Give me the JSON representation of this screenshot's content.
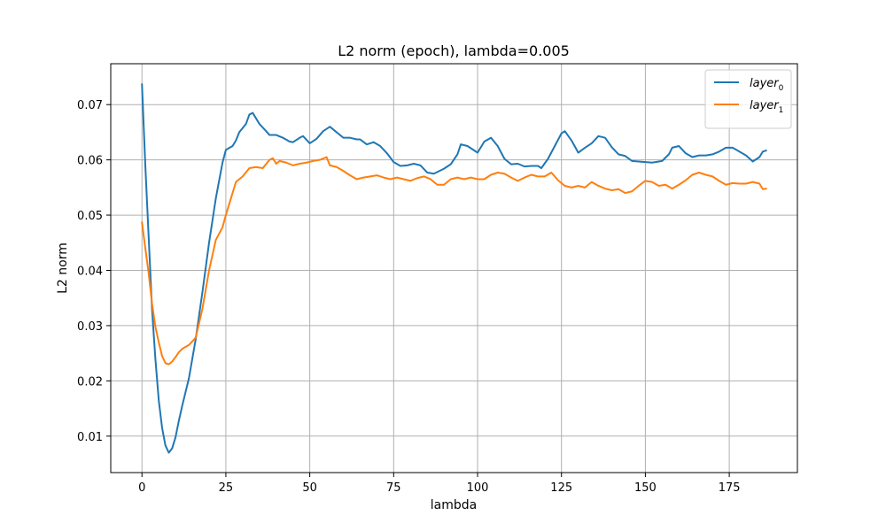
{
  "chart_data": {
    "type": "line",
    "title": "L2 norm (epoch), lambda=0.005",
    "xlabel": "lambda",
    "ylabel": "L2 norm",
    "xlim": [
      -9.3,
      195.3
    ],
    "ylim": [
      0.0034,
      0.0774
    ],
    "xticks": [
      0,
      25,
      50,
      75,
      100,
      125,
      150,
      175
    ],
    "yticks": [
      0.01,
      0.02,
      0.03,
      0.04,
      0.05,
      0.06,
      0.07
    ],
    "grid": true,
    "legend_position": "top-right",
    "series": [
      {
        "name": "layer",
        "name_sub": "0",
        "color": "#1f77b4",
        "points": [
          [
            0,
            0.0737
          ],
          [
            1,
            0.059
          ],
          [
            2,
            0.046
          ],
          [
            3,
            0.033
          ],
          [
            4,
            0.024
          ],
          [
            5,
            0.0165
          ],
          [
            6,
            0.0115
          ],
          [
            7,
            0.0083
          ],
          [
            8,
            0.007
          ],
          [
            9,
            0.0078
          ],
          [
            10,
            0.0098
          ],
          [
            11,
            0.0128
          ],
          [
            12,
            0.0155
          ],
          [
            14,
            0.0205
          ],
          [
            16,
            0.0275
          ],
          [
            18,
            0.036
          ],
          [
            20,
            0.045
          ],
          [
            22,
            0.053
          ],
          [
            24,
            0.0595
          ],
          [
            25,
            0.0618
          ],
          [
            27,
            0.0625
          ],
          [
            28,
            0.0635
          ],
          [
            29,
            0.065
          ],
          [
            31,
            0.0665
          ],
          [
            32,
            0.0682
          ],
          [
            33,
            0.0685
          ],
          [
            35,
            0.0665
          ],
          [
            37,
            0.0652
          ],
          [
            38,
            0.0645
          ],
          [
            40,
            0.0645
          ],
          [
            42,
            0.064
          ],
          [
            44,
            0.0633
          ],
          [
            45,
            0.0632
          ],
          [
            47,
            0.064
          ],
          [
            48,
            0.0643
          ],
          [
            50,
            0.063
          ],
          [
            52,
            0.0638
          ],
          [
            54,
            0.0652
          ],
          [
            56,
            0.066
          ],
          [
            58,
            0.065
          ],
          [
            60,
            0.064
          ],
          [
            62,
            0.064
          ],
          [
            64,
            0.0637
          ],
          [
            65,
            0.0637
          ],
          [
            67,
            0.0628
          ],
          [
            69,
            0.0632
          ],
          [
            71,
            0.0625
          ],
          [
            73,
            0.0612
          ],
          [
            75,
            0.0596
          ],
          [
            77,
            0.0589
          ],
          [
            79,
            0.059
          ],
          [
            81,
            0.0593
          ],
          [
            83,
            0.059
          ],
          [
            85,
            0.0577
          ],
          [
            87,
            0.0575
          ],
          [
            90,
            0.0584
          ],
          [
            92,
            0.0592
          ],
          [
            94,
            0.061
          ],
          [
            95,
            0.0628
          ],
          [
            97,
            0.0625
          ],
          [
            100,
            0.0613
          ],
          [
            102,
            0.0633
          ],
          [
            104,
            0.064
          ],
          [
            106,
            0.0625
          ],
          [
            108,
            0.0602
          ],
          [
            110,
            0.0592
          ],
          [
            112,
            0.0593
          ],
          [
            114,
            0.0588
          ],
          [
            116,
            0.0589
          ],
          [
            118,
            0.0589
          ],
          [
            119,
            0.0585
          ],
          [
            121,
            0.0602
          ],
          [
            123,
            0.0625
          ],
          [
            125,
            0.0648
          ],
          [
            126,
            0.0652
          ],
          [
            128,
            0.0635
          ],
          [
            130,
            0.0613
          ],
          [
            132,
            0.0622
          ],
          [
            134,
            0.063
          ],
          [
            136,
            0.0643
          ],
          [
            138,
            0.064
          ],
          [
            140,
            0.0623
          ],
          [
            142,
            0.061
          ],
          [
            144,
            0.0607
          ],
          [
            146,
            0.0598
          ],
          [
            148,
            0.0597
          ],
          [
            150,
            0.0596
          ],
          [
            152,
            0.0595
          ],
          [
            155,
            0.0598
          ],
          [
            157,
            0.061
          ],
          [
            158,
            0.0622
          ],
          [
            160,
            0.0625
          ],
          [
            162,
            0.0612
          ],
          [
            164,
            0.0605
          ],
          [
            166,
            0.0608
          ],
          [
            168,
            0.0608
          ],
          [
            170,
            0.061
          ],
          [
            172,
            0.0615
          ],
          [
            174,
            0.0622
          ],
          [
            176,
            0.0622
          ],
          [
            178,
            0.0615
          ],
          [
            180,
            0.0608
          ],
          [
            182,
            0.0597
          ],
          [
            184,
            0.0605
          ],
          [
            185,
            0.0615
          ],
          [
            186,
            0.0617
          ]
        ]
      },
      {
        "name": "layer",
        "name_sub": "1",
        "color": "#ff7f0e",
        "points": [
          [
            0,
            0.0487
          ],
          [
            1,
            0.044
          ],
          [
            2,
            0.0395
          ],
          [
            3,
            0.034
          ],
          [
            4,
            0.0298
          ],
          [
            5,
            0.027
          ],
          [
            6,
            0.0245
          ],
          [
            7,
            0.0232
          ],
          [
            8,
            0.023
          ],
          [
            9,
            0.0235
          ],
          [
            10,
            0.0243
          ],
          [
            11,
            0.0252
          ],
          [
            12,
            0.0258
          ],
          [
            14,
            0.0265
          ],
          [
            16,
            0.0278
          ],
          [
            18,
            0.033
          ],
          [
            20,
            0.04
          ],
          [
            22,
            0.0455
          ],
          [
            24,
            0.0478
          ],
          [
            25,
            0.05
          ],
          [
            27,
            0.054
          ],
          [
            28,
            0.056
          ],
          [
            30,
            0.057
          ],
          [
            32,
            0.0585
          ],
          [
            34,
            0.0587
          ],
          [
            36,
            0.0585
          ],
          [
            38,
            0.06
          ],
          [
            39,
            0.0603
          ],
          [
            40,
            0.0593
          ],
          [
            41,
            0.0598
          ],
          [
            43,
            0.0595
          ],
          [
            45,
            0.059
          ],
          [
            47,
            0.0593
          ],
          [
            49,
            0.0595
          ],
          [
            51,
            0.0598
          ],
          [
            53,
            0.06
          ],
          [
            55,
            0.0605
          ],
          [
            56,
            0.059
          ],
          [
            58,
            0.0587
          ],
          [
            60,
            0.058
          ],
          [
            62,
            0.0572
          ],
          [
            64,
            0.0565
          ],
          [
            66,
            0.0568
          ],
          [
            68,
            0.057
          ],
          [
            70,
            0.0572
          ],
          [
            72,
            0.0568
          ],
          [
            74,
            0.0565
          ],
          [
            76,
            0.0568
          ],
          [
            78,
            0.0565
          ],
          [
            80,
            0.0562
          ],
          [
            82,
            0.0567
          ],
          [
            84,
            0.057
          ],
          [
            86,
            0.0565
          ],
          [
            88,
            0.0555
          ],
          [
            90,
            0.0555
          ],
          [
            92,
            0.0565
          ],
          [
            94,
            0.0568
          ],
          [
            96,
            0.0565
          ],
          [
            98,
            0.0568
          ],
          [
            100,
            0.0565
          ],
          [
            102,
            0.0565
          ],
          [
            104,
            0.0573
          ],
          [
            106,
            0.0577
          ],
          [
            108,
            0.0575
          ],
          [
            110,
            0.0568
          ],
          [
            112,
            0.0562
          ],
          [
            114,
            0.0568
          ],
          [
            116,
            0.0573
          ],
          [
            118,
            0.057
          ],
          [
            120,
            0.057
          ],
          [
            122,
            0.0577
          ],
          [
            124,
            0.0563
          ],
          [
            126,
            0.0553
          ],
          [
            128,
            0.055
          ],
          [
            130,
            0.0553
          ],
          [
            132,
            0.055
          ],
          [
            134,
            0.056
          ],
          [
            136,
            0.0553
          ],
          [
            138,
            0.0548
          ],
          [
            140,
            0.0545
          ],
          [
            142,
            0.0547
          ],
          [
            144,
            0.054
          ],
          [
            146,
            0.0543
          ],
          [
            148,
            0.0553
          ],
          [
            150,
            0.0562
          ],
          [
            152,
            0.056
          ],
          [
            154,
            0.0553
          ],
          [
            156,
            0.0555
          ],
          [
            158,
            0.0548
          ],
          [
            160,
            0.0555
          ],
          [
            162,
            0.0563
          ],
          [
            164,
            0.0573
          ],
          [
            166,
            0.0577
          ],
          [
            168,
            0.0573
          ],
          [
            170,
            0.057
          ],
          [
            172,
            0.0562
          ],
          [
            174,
            0.0555
          ],
          [
            176,
            0.0558
          ],
          [
            178,
            0.0557
          ],
          [
            180,
            0.0557
          ],
          [
            182,
            0.056
          ],
          [
            184,
            0.0557
          ],
          [
            185,
            0.0547
          ],
          [
            186,
            0.0548
          ]
        ]
      }
    ]
  }
}
